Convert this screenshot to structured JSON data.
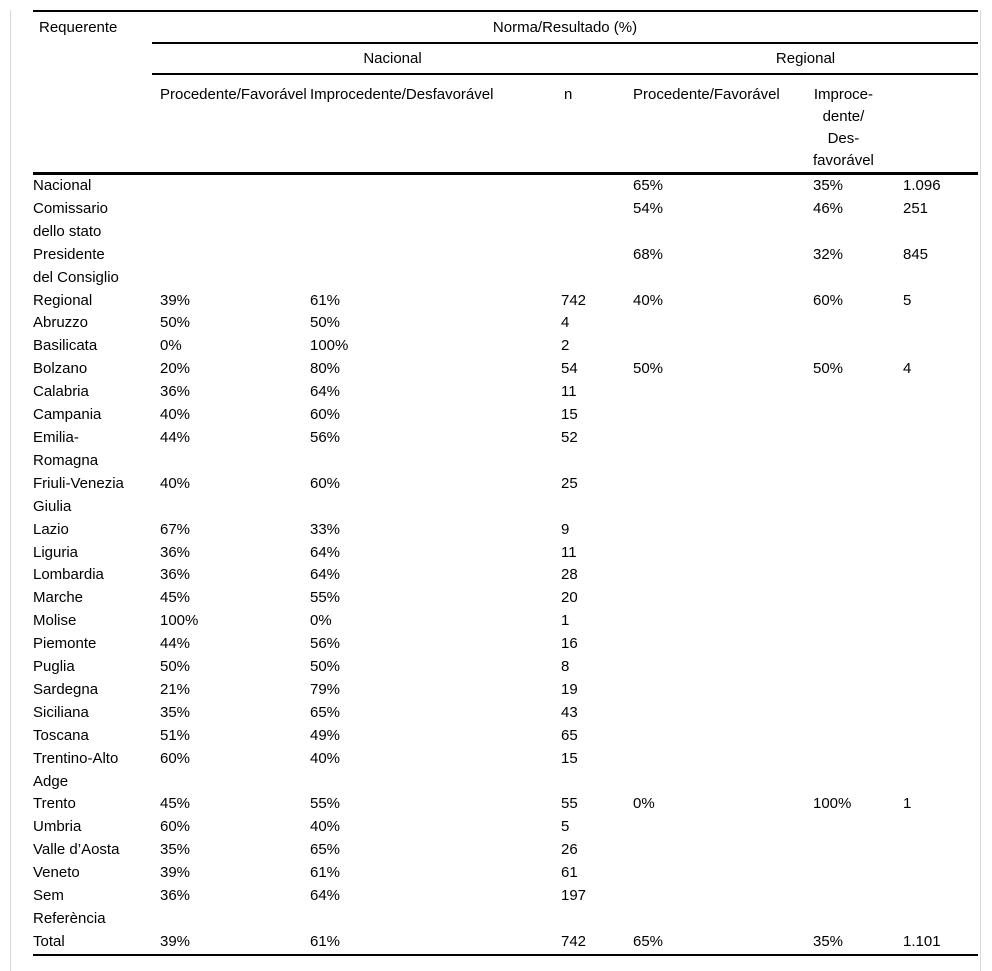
{
  "page": {
    "edge_color": "#d9d9d9"
  },
  "table": {
    "corner_header": "Requerente",
    "span_header": "Norma/Resultado (%)",
    "group_headers": {
      "nacional": "Nacional",
      "regional": "Regional"
    },
    "column_headers": {
      "nac_favoravel": "Procedente/Favorável",
      "nac_desfavoravel": "Improcedente/Desfavorável",
      "nac_n": "n",
      "reg_favoravel": "Procedente/Favorável",
      "reg_desfavoravel": "Improce-\ndente/\nDes-\nfavorável",
      "reg_n": ""
    },
    "rows": [
      {
        "label": "Nacional",
        "cells": [
          "",
          "",
          "",
          "65%",
          "35%",
          "1.096"
        ]
      },
      {
        "label": "Comissario\ndello stato",
        "cells": [
          "",
          "",
          "",
          "54%",
          "46%",
          "251"
        ]
      },
      {
        "label": "Presidente\ndel Consiglio",
        "cells": [
          "",
          "",
          "",
          "68%",
          "32%",
          "845"
        ]
      },
      {
        "label": "Regional",
        "cells": [
          "39%",
          "61%",
          "742",
          "40%",
          "60%",
          "5"
        ]
      },
      {
        "label": "Abruzzo",
        "cells": [
          "50%",
          "50%",
          "4",
          "",
          "",
          ""
        ]
      },
      {
        "label": "Basilicata",
        "cells": [
          "0%",
          "100%",
          "2",
          "",
          "",
          ""
        ]
      },
      {
        "label": "Bolzano",
        "cells": [
          "20%",
          "80%",
          "54",
          "50%",
          "50%",
          "4"
        ]
      },
      {
        "label": "Calabria",
        "cells": [
          "36%",
          "64%",
          "11",
          "",
          "",
          ""
        ]
      },
      {
        "label": "Campania",
        "cells": [
          "40%",
          "60%",
          "15",
          "",
          "",
          ""
        ]
      },
      {
        "label": "Emilia-\nRomagna",
        "cells": [
          "44%",
          "56%",
          "52",
          "",
          "",
          ""
        ]
      },
      {
        "label": "Friuli-Venezia\nGiulia",
        "cells": [
          "40%",
          "60%",
          "25",
          "",
          "",
          ""
        ]
      },
      {
        "label": "Lazio",
        "cells": [
          "67%",
          "33%",
          "9",
          "",
          "",
          ""
        ]
      },
      {
        "label": "Liguria",
        "cells": [
          "36%",
          "64%",
          "11",
          "",
          "",
          ""
        ]
      },
      {
        "label": "Lombardia",
        "cells": [
          "36%",
          "64%",
          "28",
          "",
          "",
          ""
        ]
      },
      {
        "label": "Marche",
        "cells": [
          "45%",
          "55%",
          "20",
          "",
          "",
          ""
        ]
      },
      {
        "label": "Molise",
        "cells": [
          "100%",
          "0%",
          "1",
          "",
          "",
          ""
        ]
      },
      {
        "label": "Piemonte",
        "cells": [
          "44%",
          "56%",
          "16",
          "",
          "",
          ""
        ]
      },
      {
        "label": "Puglia",
        "cells": [
          "50%",
          "50%",
          "8",
          "",
          "",
          ""
        ]
      },
      {
        "label": "Sardegna",
        "cells": [
          "21%",
          "79%",
          "19",
          "",
          "",
          ""
        ]
      },
      {
        "label": "Siciliana",
        "cells": [
          "35%",
          "65%",
          "43",
          "",
          "",
          ""
        ]
      },
      {
        "label": "Toscana",
        "cells": [
          "51%",
          "49%",
          "65",
          "",
          "",
          ""
        ]
      },
      {
        "label": "Trentino-Alto\nAdge",
        "cells": [
          "60%",
          "40%",
          "15",
          "",
          "",
          ""
        ]
      },
      {
        "label": "Trento",
        "cells": [
          "45%",
          "55%",
          "55",
          "0%",
          "100%",
          "1"
        ]
      },
      {
        "label": "Umbria",
        "cells": [
          "60%",
          "40%",
          "5",
          "",
          "",
          ""
        ]
      },
      {
        "label": "Valle d’Aosta",
        "cells": [
          "35%",
          "65%",
          "26",
          "",
          "",
          ""
        ]
      },
      {
        "label": "Veneto",
        "cells": [
          "39%",
          "61%",
          "61",
          "",
          "",
          ""
        ]
      },
      {
        "label": "Sem\nReferència",
        "cells": [
          "36%",
          "64%",
          "197",
          "",
          "",
          ""
        ]
      },
      {
        "label": "Total",
        "cells": [
          "39%",
          "61%",
          "742",
          "65%",
          "35%",
          "1.101"
        ]
      }
    ]
  }
}
